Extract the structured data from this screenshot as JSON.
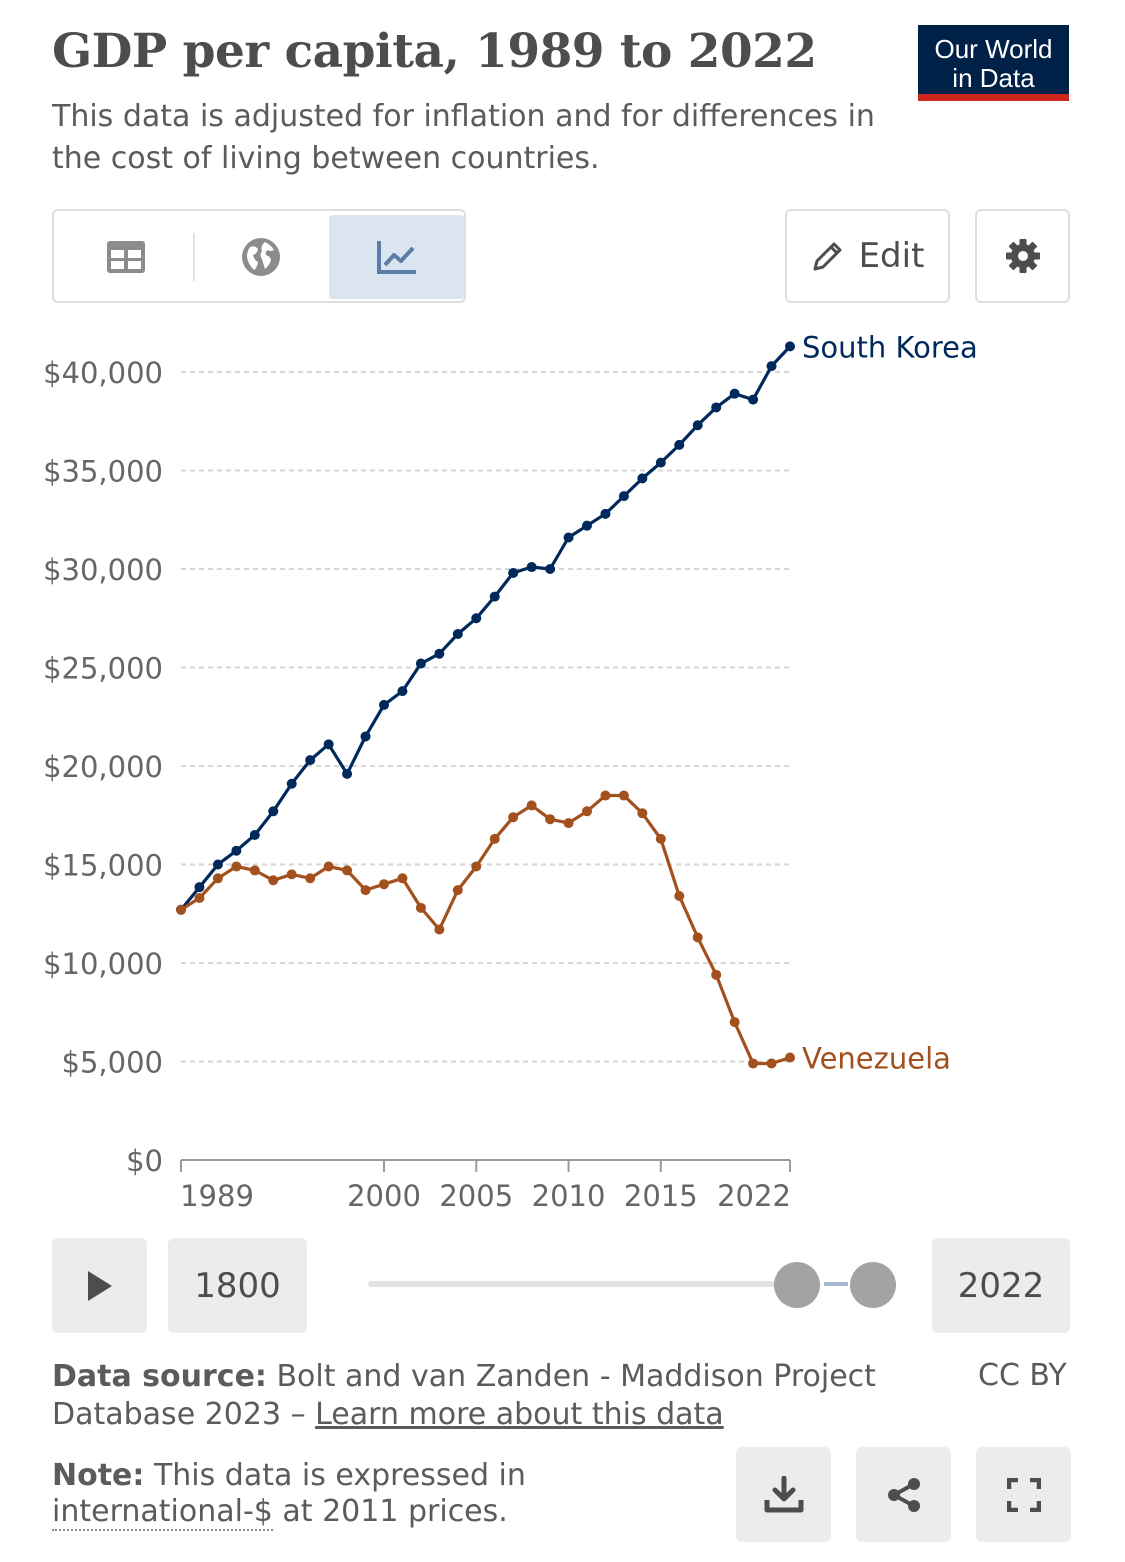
{
  "header": {
    "title": "GDP per capita, 1989 to 2022",
    "subtitle": "This data is adjusted for inflation and for differences in the cost of living between countries.",
    "logo_line1": "Our World",
    "logo_line2": "in Data"
  },
  "tabs": [
    {
      "icon": "table-icon",
      "active": false
    },
    {
      "icon": "globe-icon",
      "active": false
    },
    {
      "icon": "line-chart-icon",
      "active": true
    }
  ],
  "toolbar": {
    "edit_label": "Edit",
    "settings_icon": "gear-icon"
  },
  "chart_data": {
    "type": "line",
    "title": "GDP per capita, 1989 to 2022",
    "xlabel": "",
    "ylabel": "",
    "xlim": [
      1989,
      2022
    ],
    "ylim": [
      0,
      42000
    ],
    "y_ticks": [
      0,
      5000,
      10000,
      15000,
      20000,
      25000,
      30000,
      35000,
      40000
    ],
    "y_tick_labels": [
      "$0",
      "$5,000",
      "$10,000",
      "$15,000",
      "$20,000",
      "$25,000",
      "$30,000",
      "$35,000",
      "$40,000"
    ],
    "x_ticks": [
      1989,
      2000,
      2005,
      2010,
      2015,
      2022
    ],
    "x_tick_labels": [
      "1989",
      "2000",
      "2005",
      "2010",
      "2015",
      "2022"
    ],
    "grid": "horizontal dashed",
    "legend": "inline labels at line ends",
    "x": [
      1989,
      1990,
      1991,
      1992,
      1993,
      1994,
      1995,
      1996,
      1997,
      1998,
      1999,
      2000,
      2001,
      2002,
      2003,
      2004,
      2005,
      2006,
      2007,
      2008,
      2009,
      2010,
      2011,
      2012,
      2013,
      2014,
      2015,
      2016,
      2017,
      2018,
      2019,
      2020,
      2021,
      2022
    ],
    "series": [
      {
        "name": "South Korea",
        "color": "#00295b",
        "values": [
          12700,
          13850,
          15000,
          15700,
          16500,
          17700,
          19100,
          20300,
          21100,
          19600,
          21500,
          23100,
          23800,
          25200,
          25700,
          26700,
          27500,
          28600,
          29800,
          30100,
          30000,
          31600,
          32200,
          32800,
          33700,
          34600,
          35400,
          36300,
          37300,
          38200,
          38900,
          38600,
          40300,
          41300
        ]
      },
      {
        "name": "Venezuela",
        "color": "#a2501d",
        "values": [
          12700,
          13300,
          14300,
          14900,
          14700,
          14200,
          14500,
          14300,
          14900,
          14700,
          13700,
          14000,
          14300,
          12800,
          11700,
          13700,
          14900,
          16300,
          17400,
          18000,
          17300,
          17100,
          17700,
          18500,
          18500,
          17600,
          16300,
          13400,
          11300,
          9400,
          7000,
          4900,
          4900,
          5200
        ]
      }
    ]
  },
  "timeline": {
    "play_icon": "play-icon",
    "start_label": "1800",
    "end_label": "2022",
    "start_value": 1989,
    "end_value": 2022
  },
  "footer": {
    "source_label": "Data source:",
    "source_text": "Bolt and van Zanden - Maddison Project Database 2023 – ",
    "learn_more": "Learn more about this data",
    "license": "CC BY",
    "note_label": "Note:",
    "note_text_1": "This data is expressed in",
    "note_link": "international-$",
    "note_text_2": " at 2011 prices."
  },
  "actions": [
    {
      "icon": "download-icon"
    },
    {
      "icon": "share-icon"
    },
    {
      "icon": "fullscreen-icon"
    }
  ]
}
